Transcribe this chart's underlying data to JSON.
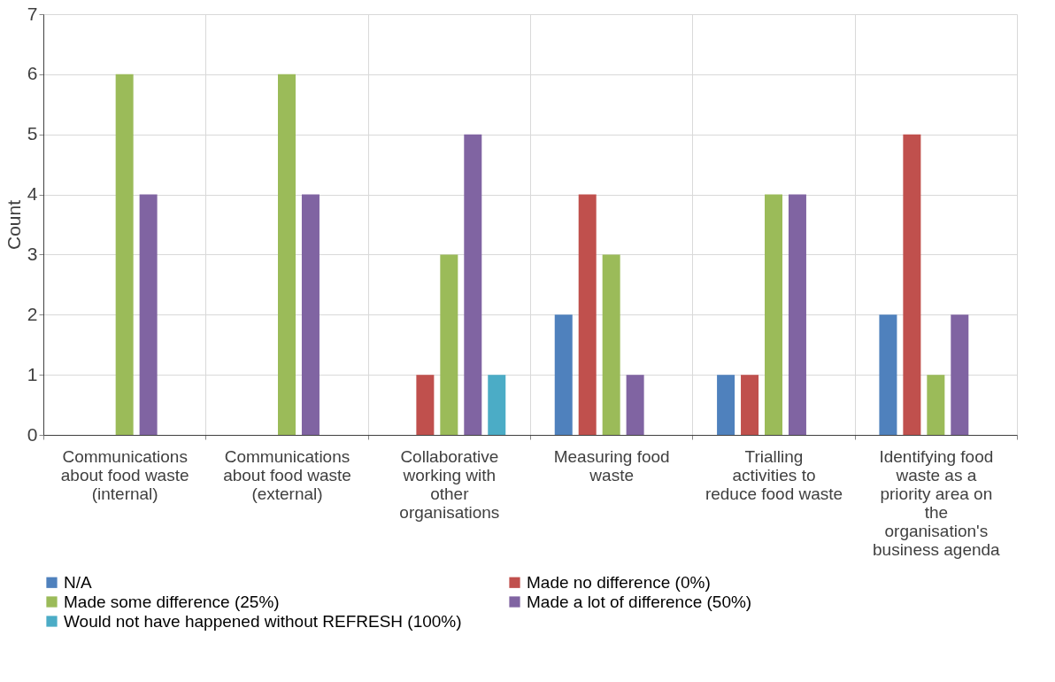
{
  "chart_data": {
    "type": "bar",
    "ylabel": "Count",
    "categories": [
      "Communications about food waste (internal)",
      "Communications about food waste (external)",
      "Collaborative working with other organisations",
      "Measuring food waste",
      "Trialling activities to reduce food waste",
      "Identifying food waste as a priority area on the organisation's business agenda"
    ],
    "series": [
      {
        "name": "N/A",
        "color": "#4f81bd",
        "values": [
          0,
          0,
          0,
          2,
          1,
          2
        ]
      },
      {
        "name": "Made no difference (0%)",
        "color": "#c0504d",
        "values": [
          0,
          0,
          1,
          4,
          1,
          5
        ]
      },
      {
        "name": "Made some difference (25%)",
        "color": "#9bbb59",
        "values": [
          6,
          6,
          3,
          3,
          4,
          1
        ]
      },
      {
        "name": "Made a lot of difference (50%)",
        "color": "#8064a2",
        "values": [
          4,
          4,
          5,
          1,
          4,
          2
        ]
      },
      {
        "name": "Would not have happened without REFRESH (100%)",
        "color": "#4bacc6",
        "values": [
          0,
          0,
          1,
          0,
          0,
          0
        ]
      }
    ],
    "ylim": [
      0,
      7
    ],
    "yticks": [
      0,
      1,
      2,
      3,
      4,
      5,
      6,
      7
    ],
    "grid": true,
    "legend": "bottom"
  }
}
